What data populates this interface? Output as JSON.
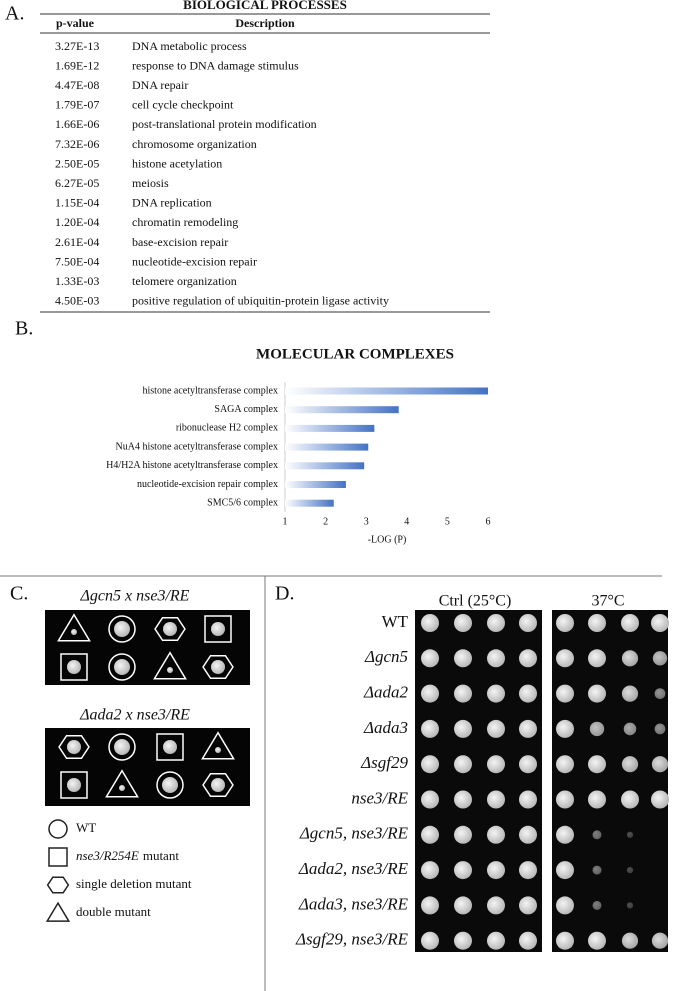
{
  "panel_labels": [
    "A.",
    "B.",
    "C.",
    "D."
  ],
  "table": {
    "title": "BIOLOGICAL PROCESSES",
    "columns": [
      "p-value",
      "Description"
    ],
    "rows": [
      [
        "3.27E-13",
        "DNA metabolic process"
      ],
      [
        "1.69E-12",
        "response to DNA damage stimulus"
      ],
      [
        "4.47E-08",
        "DNA repair"
      ],
      [
        "1.79E-07",
        "cell cycle checkpoint"
      ],
      [
        "1.66E-06",
        "post-translational protein modification"
      ],
      [
        "7.32E-06",
        "chromosome organization"
      ],
      [
        "2.50E-05",
        "histone acetylation"
      ],
      [
        "6.27E-05",
        "meiosis"
      ],
      [
        "1.15E-04",
        "DNA replication"
      ],
      [
        "1.20E-04",
        "chromatin remodeling"
      ],
      [
        "2.61E-04",
        "base-excision repair"
      ],
      [
        "7.50E-04",
        "nucleotide-excision repair"
      ],
      [
        "1.33E-03",
        "telomere organization"
      ],
      [
        "4.50E-03",
        "positive regulation of ubiquitin-protein ligase activity"
      ]
    ]
  },
  "chart_data": {
    "type": "bar",
    "orientation": "horizontal",
    "title": "MOLECULAR COMPLEXES",
    "categories": [
      "histone acetyltransferase complex",
      "SAGA complex",
      "ribonuclease H2 complex",
      "NuA4 histone acetyltransferase complex",
      "H4/H2A histone acetyltransferase complex",
      "nucleotide-excision repair complex",
      "SMC5/6 complex"
    ],
    "values": [
      6.0,
      3.8,
      3.2,
      3.05,
      2.95,
      2.5,
      2.2
    ],
    "color": "#4472c4",
    "xlabel": "-LOG (P)",
    "xlim": [
      1,
      6
    ],
    "xticks": [
      1,
      2,
      3,
      4,
      5,
      6
    ]
  },
  "crosses": {
    "titles": [
      "Δgcn5 x nse3/RE",
      "Δada2 x nse3/RE"
    ],
    "legend": [
      {
        "label": "WT"
      },
      {
        "italic": "nse3/R254E",
        "label": "mutant"
      },
      {
        "label": "single deletion mutant"
      },
      {
        "label": "double mutant"
      }
    ]
  },
  "spot_assay": {
    "conditions": [
      "Ctrl (25°C)",
      "37°C"
    ],
    "strains": [
      "WT",
      "Δgcn5",
      "Δada2",
      "Δada3",
      "Δsgf29",
      "nse3/RE",
      "Δgcn5, nse3/RE",
      "Δada2, nse3/RE",
      "Δada3, nse3/RE",
      "Δsgf29, nse3/RE"
    ]
  }
}
